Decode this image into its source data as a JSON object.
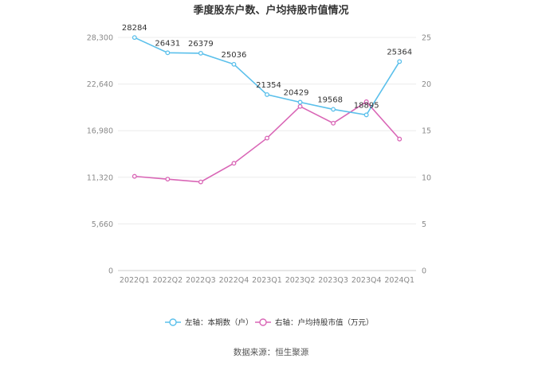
{
  "chart_data": {
    "type": "line",
    "title": "季度股东户数、户均持股市值情况",
    "categories": [
      "2022Q1",
      "2022Q2",
      "2022Q3",
      "2022Q4",
      "2023Q1",
      "2023Q2",
      "2023Q3",
      "2023Q4",
      "2024Q1"
    ],
    "left_axis": {
      "ylim": [
        0,
        28300
      ],
      "ticks": [
        "0",
        "5,660",
        "11,320",
        "16,980",
        "22,640",
        "28,300"
      ]
    },
    "right_axis": {
      "ylim": [
        0,
        25
      ],
      "ticks": [
        "0",
        "5",
        "10",
        "15",
        "20",
        "25"
      ]
    },
    "series": [
      {
        "name": "左轴：本期数（户）",
        "axis": "left",
        "color": "#5bc0eb",
        "values": [
          28284,
          26431,
          26379,
          25036,
          21354,
          20429,
          19568,
          18895,
          25364
        ],
        "labels": [
          "28284",
          "26431",
          "26379",
          "25036",
          "21354",
          "20429",
          "19568",
          "18895",
          "25364"
        ]
      },
      {
        "name": "右轴：户均持股市值（万元）",
        "axis": "right",
        "color": "#d966b6",
        "values": [
          10.1,
          9.8,
          9.5,
          11.5,
          14.2,
          17.6,
          15.8,
          18.1,
          14.1
        ]
      }
    ],
    "grid": true,
    "legend_position": "bottom"
  },
  "footer": {
    "source": "数据来源：恒生聚源"
  }
}
